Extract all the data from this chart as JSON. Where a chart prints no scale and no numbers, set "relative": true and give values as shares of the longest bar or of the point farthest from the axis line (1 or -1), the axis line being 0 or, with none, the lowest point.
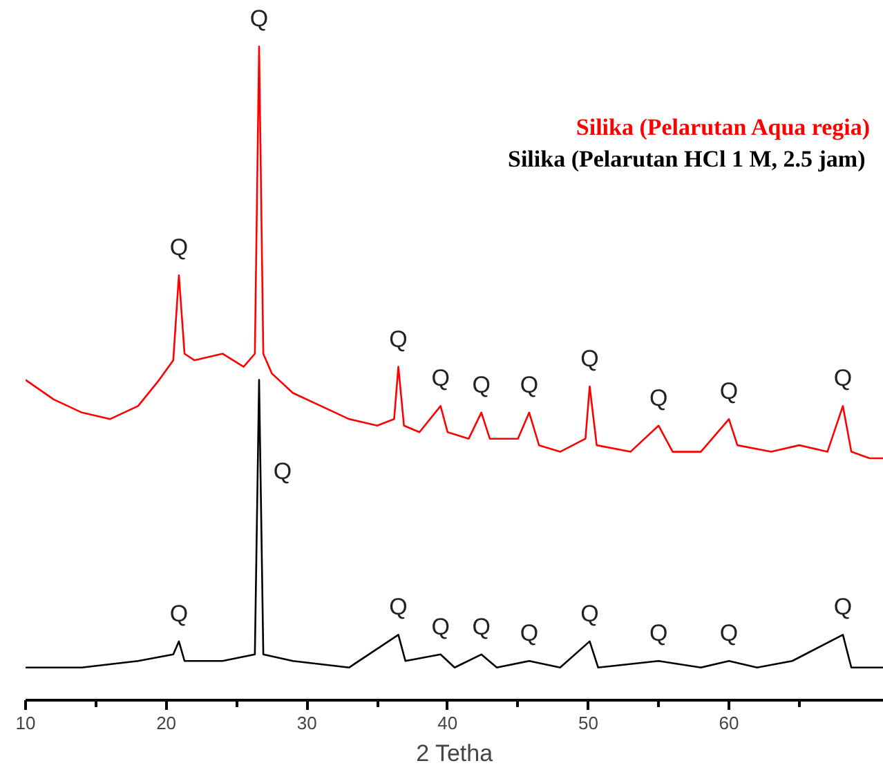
{
  "chart_data": {
    "type": "line",
    "relative": true,
    "xlabel": "2 Tetha",
    "xlim": [
      10,
      71
    ],
    "xticks": [
      10,
      20,
      30,
      40,
      50,
      60
    ],
    "grid": false,
    "legend": "top right",
    "tick_labels": "x",
    "series": [
      {
        "name": "Silika (Pelarutan Aqua regia)",
        "color": "#ff0000",
        "x": [
          10,
          12,
          14,
          16,
          18,
          19.5,
          20.5,
          20.9,
          21.3,
          22,
          24,
          25.5,
          26.3,
          26.6,
          26.9,
          27.5,
          29,
          31,
          33,
          35,
          36.2,
          36.5,
          36.9,
          38,
          39.5,
          40,
          41.5,
          42.4,
          43,
          45,
          45.8,
          46.5,
          48,
          49.8,
          50.1,
          50.6,
          53,
          55,
          56,
          58,
          60,
          60.6,
          63,
          65,
          67,
          68.1,
          68.7,
          70,
          71
        ],
        "values": [
          0.49,
          0.46,
          0.44,
          0.43,
          0.45,
          0.49,
          0.52,
          0.65,
          0.53,
          0.52,
          0.53,
          0.51,
          0.53,
          1.0,
          0.53,
          0.5,
          0.47,
          0.45,
          0.43,
          0.42,
          0.43,
          0.51,
          0.42,
          0.41,
          0.45,
          0.41,
          0.4,
          0.44,
          0.4,
          0.4,
          0.44,
          0.39,
          0.38,
          0.4,
          0.48,
          0.39,
          0.38,
          0.42,
          0.38,
          0.38,
          0.43,
          0.39,
          0.38,
          0.39,
          0.38,
          0.45,
          0.38,
          0.37,
          0.37
        ]
      },
      {
        "name": "Silika (Pelarutan  HCl 1 M, 2.5 jam)",
        "color": "#000000",
        "x": [
          10,
          14,
          18,
          20.5,
          20.9,
          21.3,
          24,
          26.3,
          26.6,
          26.9,
          29,
          33,
          36.5,
          37,
          39.5,
          40.5,
          42.4,
          43.5,
          45.8,
          48,
          50.1,
          50.7,
          55,
          58,
          60,
          62,
          64.5,
          68.1,
          68.7,
          71
        ],
        "values": [
          0.05,
          0.05,
          0.06,
          0.07,
          0.09,
          0.06,
          0.06,
          0.07,
          0.49,
          0.07,
          0.06,
          0.05,
          0.1,
          0.06,
          0.07,
          0.05,
          0.07,
          0.05,
          0.06,
          0.05,
          0.09,
          0.05,
          0.06,
          0.05,
          0.06,
          0.05,
          0.06,
          0.1,
          0.05,
          0.05
        ]
      }
    ],
    "annotations": [
      {
        "text": "Q",
        "x": 20.9,
        "y": 0.65
      },
      {
        "text": "Q",
        "x": 26.6,
        "y": 1.0
      },
      {
        "text": "Q",
        "x": 36.5,
        "y": 0.51
      },
      {
        "text": "Q",
        "x": 39.5,
        "y": 0.45
      },
      {
        "text": "Q",
        "x": 42.4,
        "y": 0.44
      },
      {
        "text": "Q",
        "x": 45.8,
        "y": 0.44
      },
      {
        "text": "Q",
        "x": 50.1,
        "y": 0.48
      },
      {
        "text": "Q",
        "x": 55,
        "y": 0.42
      },
      {
        "text": "Q",
        "x": 60,
        "y": 0.43
      },
      {
        "text": "Q",
        "x": 68.1,
        "y": 0.45
      },
      {
        "text": "Q",
        "x": 20.9,
        "y": 0.09
      },
      {
        "text": "Q",
        "x": 26.7,
        "y": 0.35
      },
      {
        "text": "Q",
        "x": 36.5,
        "y": 0.1
      },
      {
        "text": "Q",
        "x": 39.5,
        "y": 0.07
      },
      {
        "text": "Q",
        "x": 42.4,
        "y": 0.07
      },
      {
        "text": "Q",
        "x": 45.8,
        "y": 0.06
      },
      {
        "text": "Q",
        "x": 50.1,
        "y": 0.09
      },
      {
        "text": "Q",
        "x": 55,
        "y": 0.06
      },
      {
        "text": "Q",
        "x": 60,
        "y": 0.06
      },
      {
        "text": "Q",
        "x": 68.1,
        "y": 0.1
      }
    ]
  }
}
